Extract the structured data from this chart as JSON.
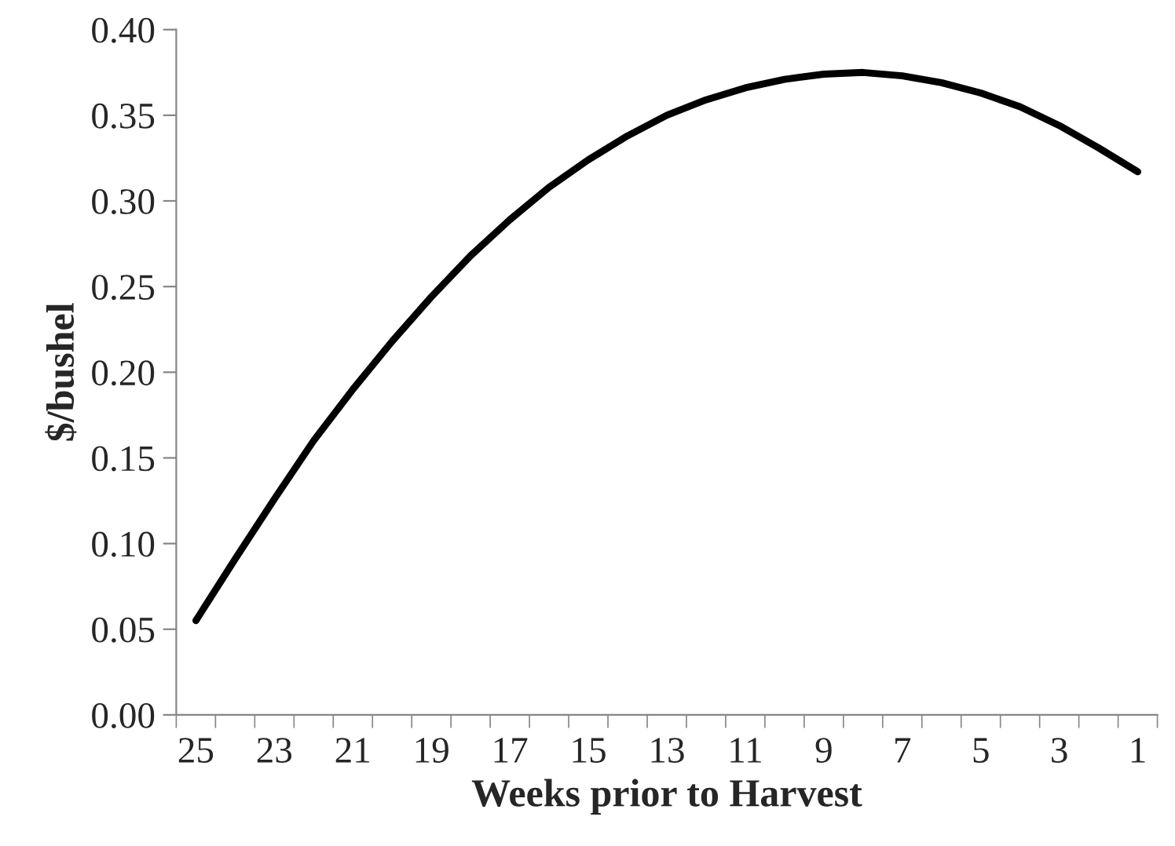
{
  "chart_data": {
    "type": "line",
    "xlabel": "Weeks prior to Harvest",
    "ylabel": "$/bushel",
    "categories": [
      "25",
      null,
      "23",
      null,
      "21",
      null,
      "19",
      null,
      "17",
      null,
      "15",
      null,
      "13",
      null,
      "11",
      null,
      "9",
      null,
      "7",
      null,
      "5",
      null,
      "3",
      null,
      "1"
    ],
    "series": [
      {
        "color": "#000000",
        "values": [
          0.055,
          0.091,
          0.126,
          0.16,
          0.19,
          0.218,
          0.244,
          0.268,
          0.289,
          0.308,
          0.324,
          0.338,
          0.35,
          0.359,
          0.366,
          0.371,
          0.374,
          0.375,
          0.373,
          0.369,
          0.363,
          0.355,
          0.344,
          0.331,
          0.317
        ]
      }
    ],
    "ylim": [
      0,
      0.4
    ],
    "yticks": [
      {
        "value": 0,
        "label": "0.00"
      },
      {
        "value": 0.05,
        "label": "0.05"
      },
      {
        "value": 0.1,
        "label": "0.10"
      },
      {
        "value": 0.15,
        "label": "0.15"
      },
      {
        "value": 0.2,
        "label": "0.20"
      },
      {
        "value": 0.25,
        "label": "0.25"
      },
      {
        "value": 0.3,
        "label": "0.30"
      },
      {
        "value": 0.35,
        "label": "0.35"
      },
      {
        "value": 0.4,
        "label": "0.40"
      }
    ],
    "grid": false,
    "legend": false,
    "line_style": "solid",
    "marker": "none"
  }
}
